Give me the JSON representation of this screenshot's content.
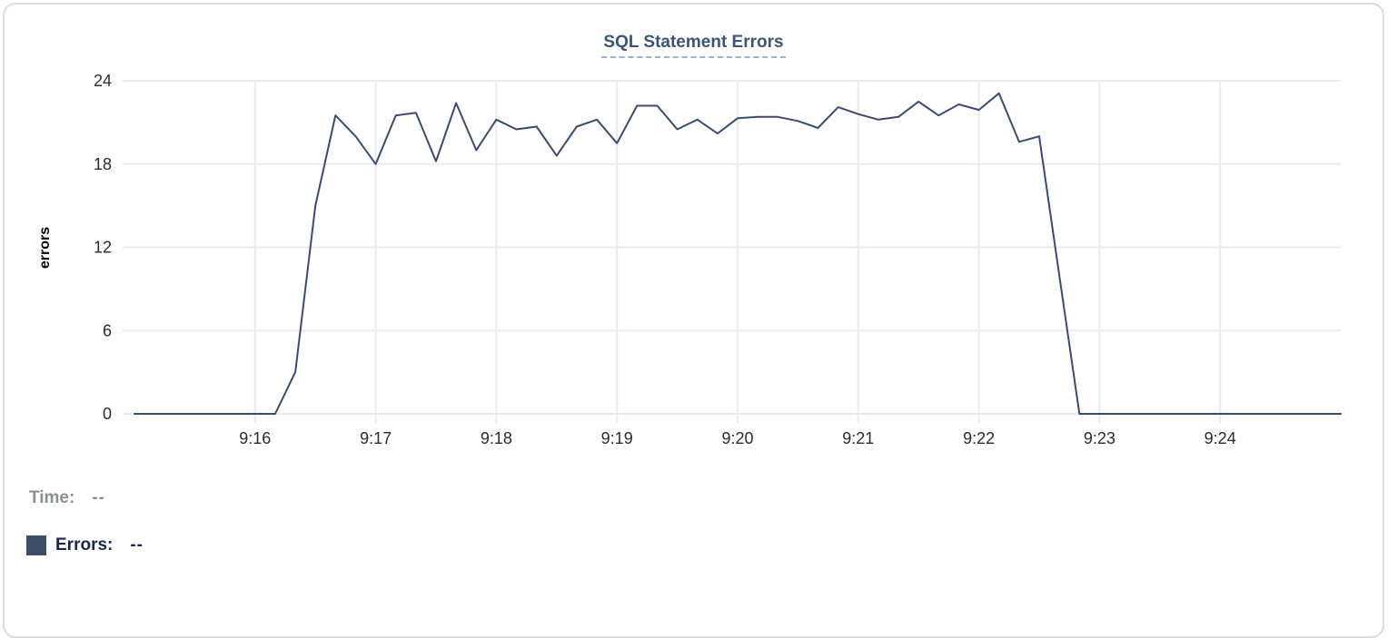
{
  "card": {
    "title": "SQL Statement Errors"
  },
  "chart_data": {
    "type": "line",
    "title": "SQL Statement Errors",
    "xlabel": "",
    "ylabel": "errors",
    "ylim": [
      0,
      24
    ],
    "y_ticks": [
      0,
      6,
      12,
      18,
      24
    ],
    "x_tick_labels": [
      "9:16",
      "9:17",
      "9:18",
      "9:19",
      "9:20",
      "9:21",
      "9:22",
      "9:23",
      "9:24"
    ],
    "x_range": [
      "9:15:00",
      "9:25:00"
    ],
    "x_interval_seconds": 10,
    "grid": true,
    "legend_position": "bottom-left",
    "series": [
      {
        "name": "Errors",
        "color": "#3c4b6b",
        "values": [
          0,
          0,
          0,
          0,
          0,
          0,
          0,
          0,
          3,
          15,
          21.5,
          20,
          18,
          21.5,
          21.7,
          18.2,
          22.4,
          19,
          21.2,
          20.5,
          20.7,
          18.6,
          20.7,
          21.2,
          19.5,
          22.2,
          22.2,
          20.5,
          21.2,
          20.2,
          21.3,
          21.4,
          21.4,
          21.1,
          20.6,
          22.1,
          21.6,
          21.2,
          21.4,
          22.5,
          21.5,
          22.3,
          21.9,
          23.1,
          19.6,
          20,
          10,
          0,
          0,
          0,
          0,
          0,
          0,
          0,
          0,
          0,
          0,
          0,
          0,
          0,
          0
        ]
      }
    ]
  },
  "legend": {
    "time_label": "Time:",
    "time_value": "--",
    "errors_label": "Errors:",
    "errors_value": "--",
    "swatch_color": "#3e4d68"
  },
  "colors": {
    "line": "#3c4b6b",
    "grid": "#ebebeb",
    "axis_text": "#2b2b2b",
    "axis_title": "#000000",
    "title": "#3d5475",
    "title_underline": "#9fafc6",
    "card_border": "#dcdce0",
    "legend_muted": "#8a8f96",
    "legend_dark": "#1a2547"
  }
}
